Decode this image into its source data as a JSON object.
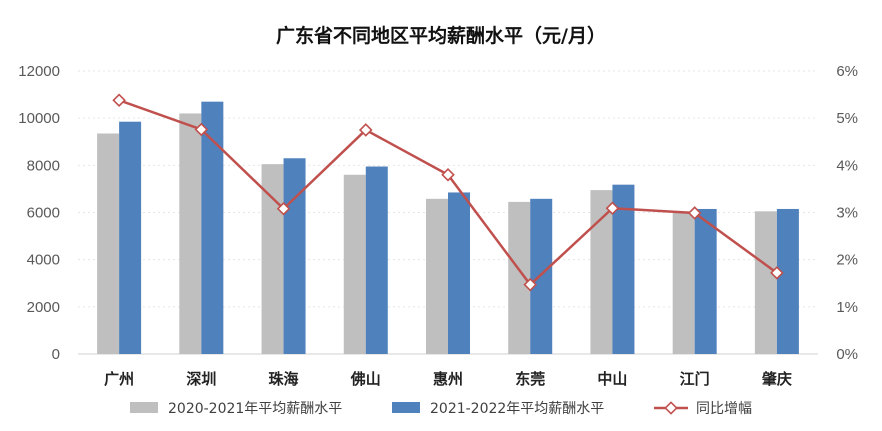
{
  "chart_data": {
    "type": "bar",
    "title": "广东省不同地区平均薪酬水平（元/月）",
    "categories": [
      "广州",
      "深圳",
      "珠海",
      "佛山",
      "惠州",
      "东莞",
      "中山",
      "江门",
      "肇庆"
    ],
    "series": [
      {
        "name": "2020-2021年平均薪酬水平",
        "type": "bar",
        "axis": "left",
        "color": "#bfbfbf",
        "values": [
          9350,
          10200,
          8050,
          7600,
          6580,
          6450,
          6950,
          6000,
          6050
        ]
      },
      {
        "name": "2021-2022年平均薪酬水平",
        "type": "bar",
        "axis": "left",
        "color": "#4f81bd",
        "values": [
          9850,
          10700,
          8300,
          7950,
          6850,
          6580,
          7180,
          6150,
          6150
        ]
      },
      {
        "name": "同比增幅",
        "type": "line",
        "axis": "right",
        "color": "#c0504d",
        "unit": "%",
        "values": [
          5.38,
          4.76,
          3.08,
          4.75,
          3.8,
          1.47,
          3.09,
          2.99,
          1.72
        ]
      }
    ],
    "y_left": {
      "ylim": [
        0,
        12000
      ],
      "ticks": [
        "0",
        "2000",
        "4000",
        "6000",
        "8000",
        "10000",
        "12000"
      ]
    },
    "y_right": {
      "ylim": [
        0,
        6
      ],
      "ticks": [
        "0%",
        "1%",
        "2%",
        "3%",
        "4%",
        "5%",
        "6%"
      ]
    },
    "grid": true,
    "legend_position": "bottom"
  }
}
